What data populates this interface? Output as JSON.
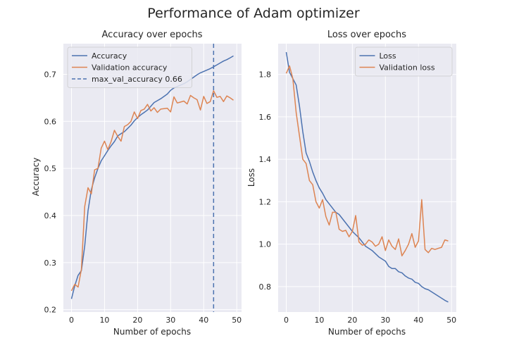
{
  "figure": {
    "suptitle": "Performance of Adam optimizer"
  },
  "colors": {
    "blue": "#4c72b0",
    "orange": "#dd8452",
    "panel_bg": "#eaeaf2",
    "grid": "#ffffff"
  },
  "chart_data": [
    {
      "type": "line",
      "title": "Accuracy over epochs",
      "xlabel": "Number of epochs",
      "ylabel": "Accuracy",
      "xlim": [
        -2.45,
        51.45
      ],
      "ylim": [
        0.195,
        0.765
      ],
      "xticks": [
        0,
        10,
        20,
        30,
        40,
        50
      ],
      "yticks": [
        0.2,
        0.3,
        0.4,
        0.5,
        0.6,
        0.7
      ],
      "ytick_labels": [
        "0.2",
        "0.3",
        "0.4",
        "0.5",
        "0.6",
        "0.7"
      ],
      "grid": true,
      "legend_position": "upper-left",
      "series": [
        {
          "name": "Accuracy",
          "color": "#4c72b0",
          "x": [
            0,
            1,
            2,
            3,
            4,
            5,
            6,
            7,
            8,
            9,
            10,
            11,
            12,
            13,
            14,
            15,
            16,
            17,
            18,
            19,
            20,
            21,
            22,
            23,
            24,
            25,
            26,
            27,
            28,
            29,
            30,
            31,
            32,
            33,
            34,
            35,
            36,
            37,
            38,
            39,
            40,
            41,
            42,
            43,
            44,
            45,
            46,
            47,
            48,
            49
          ],
          "y": [
            0.223,
            0.251,
            0.273,
            0.283,
            0.335,
            0.41,
            0.455,
            0.48,
            0.5,
            0.516,
            0.527,
            0.538,
            0.548,
            0.557,
            0.569,
            0.574,
            0.578,
            0.585,
            0.592,
            0.601,
            0.608,
            0.614,
            0.619,
            0.624,
            0.632,
            0.64,
            0.644,
            0.648,
            0.653,
            0.658,
            0.666,
            0.671,
            0.674,
            0.677,
            0.68,
            0.684,
            0.689,
            0.694,
            0.699,
            0.703,
            0.706,
            0.709,
            0.712,
            0.716,
            0.72,
            0.724,
            0.728,
            0.731,
            0.735,
            0.739
          ]
        },
        {
          "name": "Validation accuracy",
          "color": "#dd8452",
          "x": [
            0,
            1,
            2,
            3,
            4,
            5,
            6,
            7,
            8,
            9,
            10,
            11,
            12,
            13,
            14,
            15,
            16,
            17,
            18,
            19,
            20,
            21,
            22,
            23,
            24,
            25,
            26,
            27,
            28,
            29,
            30,
            31,
            32,
            33,
            34,
            35,
            36,
            37,
            38,
            39,
            40,
            41,
            42,
            43,
            44,
            45,
            46,
            47,
            48,
            49
          ],
          "y": [
            0.24,
            0.254,
            0.248,
            0.286,
            0.419,
            0.459,
            0.446,
            0.497,
            0.5,
            0.543,
            0.558,
            0.54,
            0.557,
            0.581,
            0.568,
            0.558,
            0.589,
            0.593,
            0.6,
            0.62,
            0.606,
            0.623,
            0.626,
            0.636,
            0.622,
            0.629,
            0.619,
            0.626,
            0.627,
            0.628,
            0.62,
            0.652,
            0.639,
            0.641,
            0.643,
            0.637,
            0.655,
            0.65,
            0.646,
            0.624,
            0.653,
            0.638,
            0.642,
            0.665,
            0.651,
            0.653,
            0.642,
            0.654,
            0.65,
            0.645
          ]
        },
        {
          "name": "max_val_accuracy 0.66",
          "color": "#4c72b0",
          "style": "dashed",
          "orientation": "vertical",
          "x_value": 43
        }
      ]
    },
    {
      "type": "line",
      "title": "Loss over epochs",
      "xlabel": "Number of epochs",
      "ylabel": "Loss",
      "xlim": [
        -2.45,
        51.45
      ],
      "ylim": [
        0.68,
        1.945
      ],
      "xticks": [
        0,
        10,
        20,
        30,
        40,
        50
      ],
      "yticks": [
        0.8,
        1.0,
        1.2,
        1.4,
        1.6,
        1.8
      ],
      "ytick_labels": [
        "0.8",
        "1.0",
        "1.2",
        "1.4",
        "1.6",
        "1.8"
      ],
      "grid": true,
      "legend_position": "upper-right",
      "series": [
        {
          "name": "Loss",
          "color": "#4c72b0",
          "x": [
            0,
            1,
            2,
            3,
            4,
            5,
            6,
            7,
            8,
            9,
            10,
            11,
            12,
            13,
            14,
            15,
            16,
            17,
            18,
            19,
            20,
            21,
            22,
            23,
            24,
            25,
            26,
            27,
            28,
            29,
            30,
            31,
            32,
            33,
            34,
            35,
            36,
            37,
            38,
            39,
            40,
            41,
            42,
            43,
            44,
            45,
            46,
            47,
            48,
            49
          ],
          "y": [
            1.905,
            1.81,
            1.78,
            1.75,
            1.65,
            1.53,
            1.43,
            1.39,
            1.34,
            1.3,
            1.265,
            1.24,
            1.21,
            1.19,
            1.17,
            1.15,
            1.14,
            1.12,
            1.1,
            1.08,
            1.06,
            1.045,
            1.03,
            1.01,
            0.99,
            0.98,
            0.97,
            0.955,
            0.94,
            0.93,
            0.92,
            0.895,
            0.885,
            0.885,
            0.87,
            0.865,
            0.85,
            0.84,
            0.835,
            0.82,
            0.815,
            0.8,
            0.79,
            0.785,
            0.775,
            0.765,
            0.755,
            0.745,
            0.735,
            0.727
          ]
        },
        {
          "name": "Validation loss",
          "color": "#dd8452",
          "x": [
            0,
            1,
            2,
            3,
            4,
            5,
            6,
            7,
            8,
            9,
            10,
            11,
            12,
            13,
            14,
            15,
            16,
            17,
            18,
            19,
            20,
            21,
            22,
            23,
            24,
            25,
            26,
            27,
            28,
            29,
            30,
            31,
            32,
            33,
            34,
            35,
            36,
            37,
            38,
            39,
            40,
            41,
            42,
            43,
            44,
            45,
            46,
            47,
            48,
            49
          ],
          "y": [
            1.805,
            1.84,
            1.78,
            1.62,
            1.51,
            1.4,
            1.38,
            1.3,
            1.28,
            1.2,
            1.17,
            1.21,
            1.13,
            1.09,
            1.15,
            1.15,
            1.07,
            1.06,
            1.065,
            1.035,
            1.06,
            1.135,
            1.01,
            0.995,
            1.0,
            1.02,
            1.01,
            0.99,
            1.0,
            1.035,
            0.97,
            1.02,
            0.99,
            0.975,
            1.025,
            0.945,
            0.97,
            1.0,
            1.05,
            0.985,
            1.015,
            1.21,
            0.975,
            0.96,
            0.98,
            0.975,
            0.98,
            0.985,
            1.02,
            1.015
          ]
        }
      ]
    }
  ]
}
